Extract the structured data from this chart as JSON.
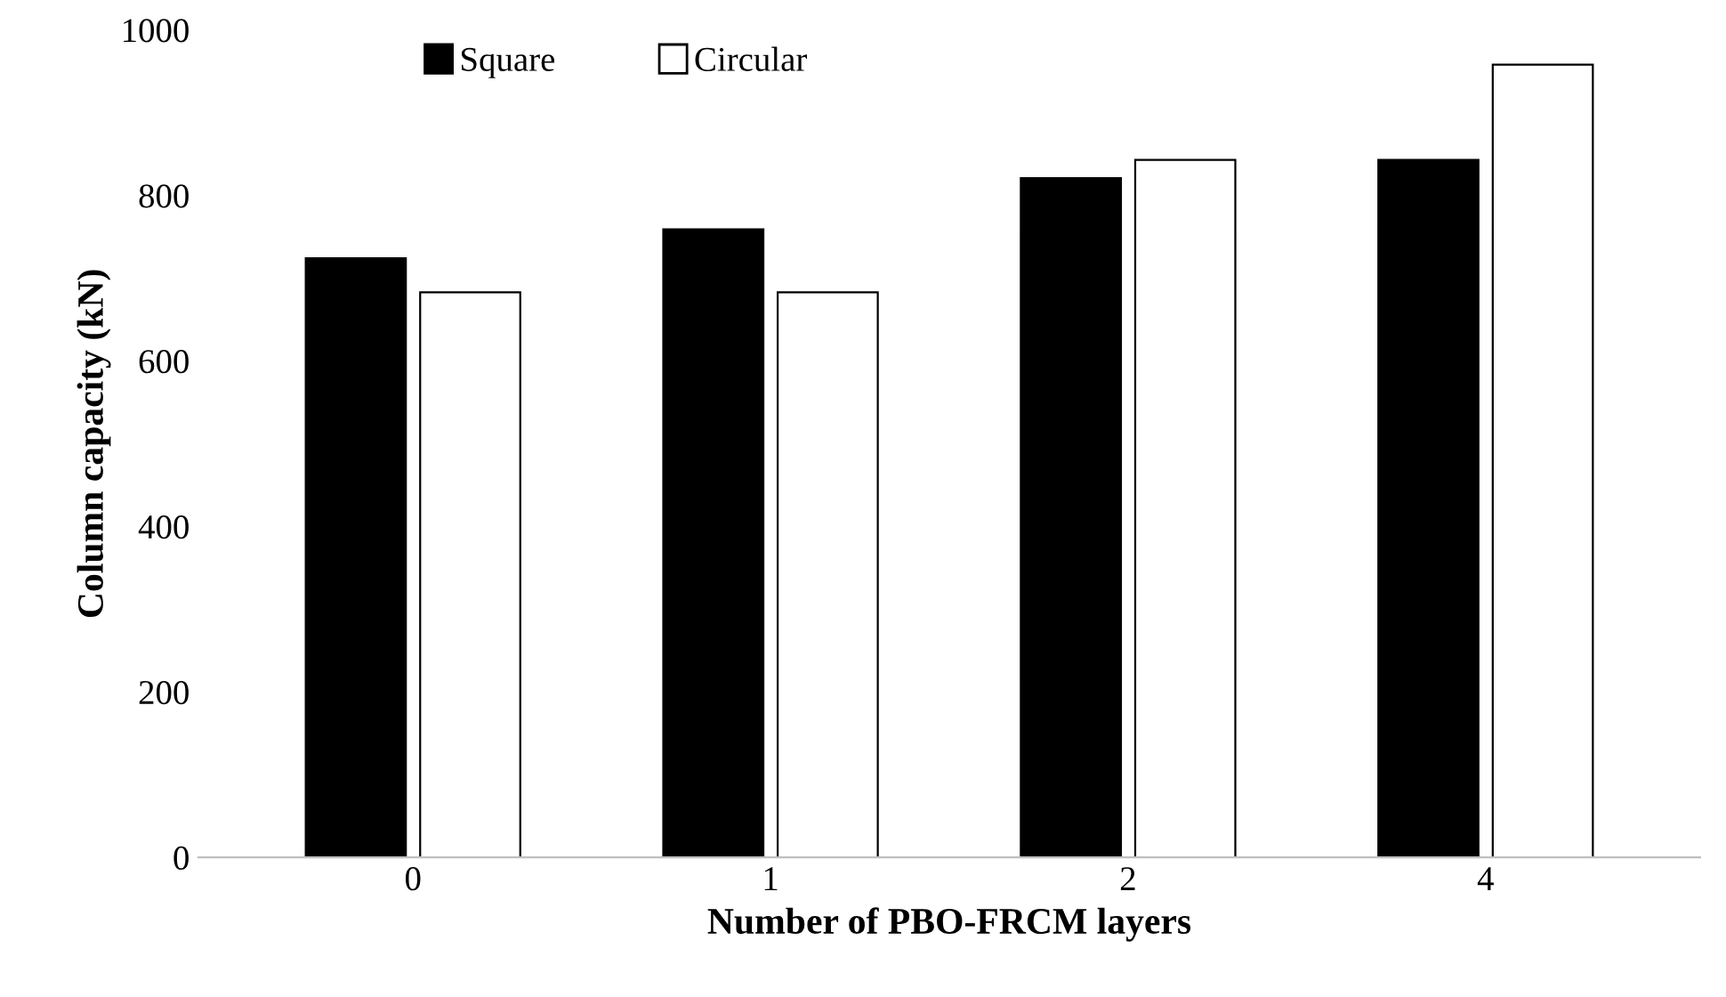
{
  "chart_data": {
    "type": "bar",
    "xlabel": "Number of PBO-FRCM layers",
    "ylabel": "Column capacity (kN)",
    "categories": [
      "0",
      "1",
      "2",
      "4"
    ],
    "series": [
      {
        "name": "Square",
        "color": "#000000",
        "values": [
          724,
          759,
          821,
          843
        ]
      },
      {
        "name": "Circular",
        "color": "#ffffff",
        "values": [
          683,
          683,
          843,
          958
        ]
      }
    ],
    "ylim": [
      0,
      1000
    ],
    "yticks": [
      0,
      200,
      400,
      600,
      800,
      1000
    ],
    "grid": false,
    "legend": "top left"
  }
}
